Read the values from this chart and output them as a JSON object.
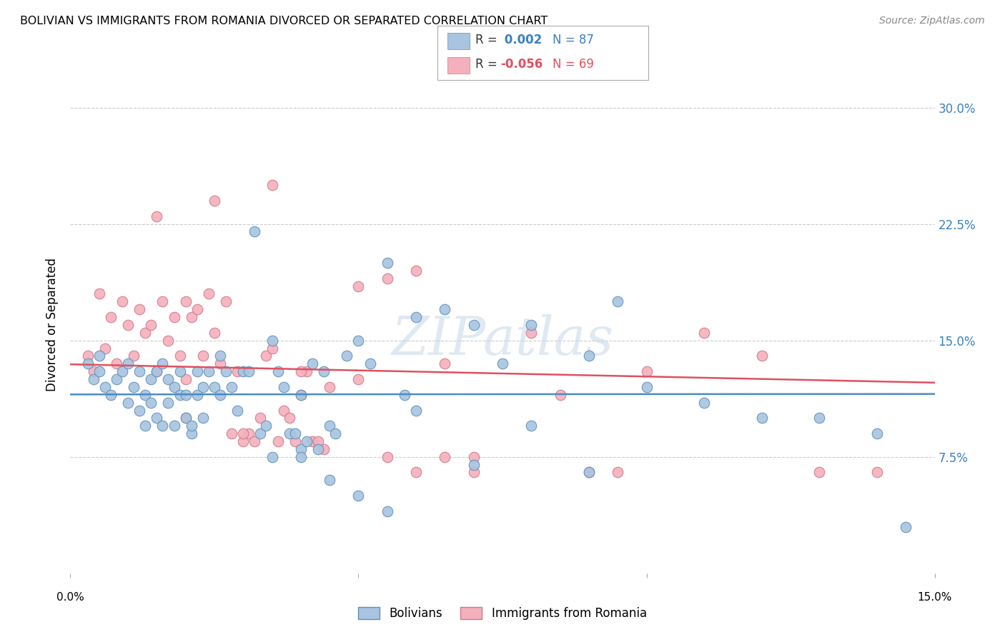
{
  "title": "BOLIVIAN VS IMMIGRANTS FROM ROMANIA DIVORCED OR SEPARATED CORRELATION CHART",
  "source": "Source: ZipAtlas.com",
  "ylabel": "Divorced or Separated",
  "xlim": [
    0.0,
    0.15
  ],
  "ylim": [
    0.0,
    0.32
  ],
  "ytick_vals": [
    0.075,
    0.15,
    0.225,
    0.3
  ],
  "ytick_labels": [
    "7.5%",
    "15.0%",
    "22.5%",
    "30.0%"
  ],
  "legend_r_blue": " 0.002",
  "legend_n_blue": "87",
  "legend_r_pink": "-0.056",
  "legend_n_pink": "69",
  "blue_color": "#a8c4e0",
  "pink_color": "#f4b0bc",
  "blue_edge_color": "#6090b8",
  "pink_edge_color": "#d07888",
  "blue_line_color": "#4a8cc4",
  "pink_line_color": "#e05060",
  "watermark": "ZIPatlas",
  "blue_scatter_x": [
    0.003,
    0.004,
    0.005,
    0.005,
    0.006,
    0.007,
    0.008,
    0.009,
    0.01,
    0.01,
    0.011,
    0.012,
    0.012,
    0.013,
    0.013,
    0.014,
    0.014,
    0.015,
    0.015,
    0.016,
    0.016,
    0.017,
    0.017,
    0.018,
    0.018,
    0.019,
    0.019,
    0.02,
    0.02,
    0.021,
    0.021,
    0.022,
    0.022,
    0.023,
    0.023,
    0.024,
    0.025,
    0.026,
    0.026,
    0.027,
    0.028,
    0.029,
    0.03,
    0.031,
    0.032,
    0.033,
    0.034,
    0.035,
    0.036,
    0.037,
    0.038,
    0.039,
    0.04,
    0.04,
    0.041,
    0.042,
    0.043,
    0.044,
    0.045,
    0.046,
    0.048,
    0.05,
    0.052,
    0.055,
    0.058,
    0.06,
    0.065,
    0.07,
    0.075,
    0.08,
    0.09,
    0.095,
    0.1,
    0.11,
    0.12,
    0.13,
    0.14,
    0.145,
    0.035,
    0.04,
    0.045,
    0.05,
    0.055,
    0.06,
    0.07,
    0.08,
    0.09
  ],
  "blue_scatter_y": [
    0.135,
    0.125,
    0.13,
    0.14,
    0.12,
    0.115,
    0.125,
    0.13,
    0.135,
    0.11,
    0.12,
    0.13,
    0.105,
    0.115,
    0.095,
    0.11,
    0.125,
    0.13,
    0.1,
    0.135,
    0.095,
    0.125,
    0.11,
    0.12,
    0.095,
    0.115,
    0.13,
    0.1,
    0.115,
    0.09,
    0.095,
    0.115,
    0.13,
    0.1,
    0.12,
    0.13,
    0.12,
    0.14,
    0.115,
    0.13,
    0.12,
    0.105,
    0.13,
    0.13,
    0.22,
    0.09,
    0.095,
    0.15,
    0.13,
    0.12,
    0.09,
    0.09,
    0.115,
    0.08,
    0.085,
    0.135,
    0.08,
    0.13,
    0.095,
    0.09,
    0.14,
    0.15,
    0.135,
    0.2,
    0.115,
    0.165,
    0.17,
    0.16,
    0.135,
    0.16,
    0.14,
    0.175,
    0.12,
    0.11,
    0.1,
    0.1,
    0.09,
    0.03,
    0.075,
    0.075,
    0.06,
    0.05,
    0.04,
    0.105,
    0.07,
    0.095,
    0.065
  ],
  "pink_scatter_x": [
    0.003,
    0.004,
    0.005,
    0.006,
    0.007,
    0.008,
    0.009,
    0.01,
    0.011,
    0.012,
    0.013,
    0.014,
    0.015,
    0.016,
    0.017,
    0.018,
    0.019,
    0.02,
    0.02,
    0.021,
    0.022,
    0.023,
    0.024,
    0.025,
    0.026,
    0.027,
    0.028,
    0.029,
    0.03,
    0.031,
    0.032,
    0.033,
    0.034,
    0.035,
    0.036,
    0.037,
    0.038,
    0.039,
    0.04,
    0.041,
    0.042,
    0.043,
    0.044,
    0.05,
    0.055,
    0.06,
    0.065,
    0.07,
    0.08,
    0.085,
    0.09,
    0.095,
    0.1,
    0.11,
    0.12,
    0.13,
    0.14,
    0.015,
    0.02,
    0.025,
    0.03,
    0.035,
    0.04,
    0.045,
    0.05,
    0.055,
    0.06,
    0.065,
    0.07
  ],
  "pink_scatter_y": [
    0.14,
    0.13,
    0.18,
    0.145,
    0.165,
    0.135,
    0.175,
    0.16,
    0.14,
    0.17,
    0.155,
    0.16,
    0.13,
    0.175,
    0.15,
    0.165,
    0.14,
    0.125,
    0.175,
    0.165,
    0.17,
    0.14,
    0.18,
    0.155,
    0.135,
    0.175,
    0.09,
    0.13,
    0.085,
    0.09,
    0.085,
    0.1,
    0.14,
    0.145,
    0.085,
    0.105,
    0.1,
    0.085,
    0.115,
    0.13,
    0.085,
    0.085,
    0.08,
    0.125,
    0.19,
    0.195,
    0.135,
    0.075,
    0.155,
    0.115,
    0.065,
    0.065,
    0.13,
    0.155,
    0.14,
    0.065,
    0.065,
    0.23,
    0.1,
    0.24,
    0.09,
    0.25,
    0.13,
    0.12,
    0.185,
    0.075,
    0.065,
    0.075,
    0.065
  ]
}
